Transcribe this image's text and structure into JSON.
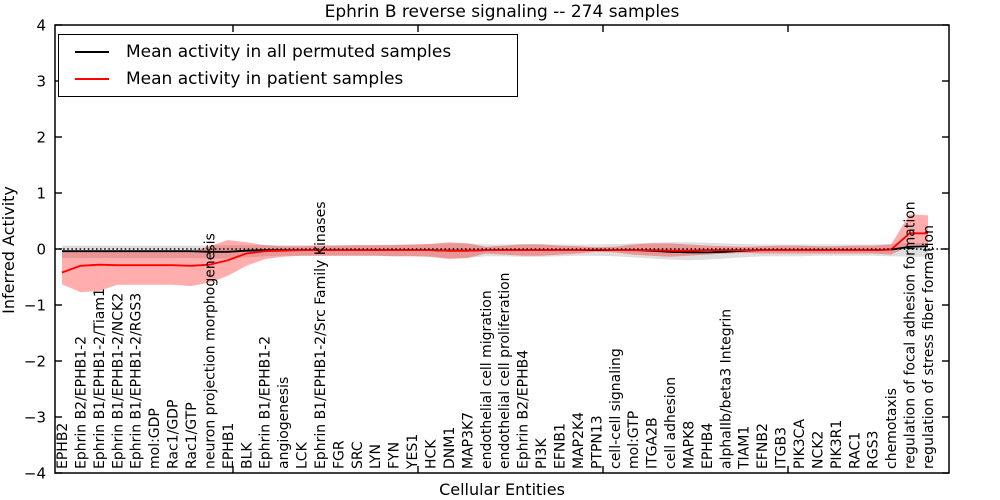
{
  "chart_data": {
    "type": "line",
    "title": "Ephrin B reverse signaling -- 274 samples",
    "xlabel": "Cellular Entities",
    "ylabel": "Inferred Activity",
    "ylim": [
      -4,
      4
    ],
    "grid": false,
    "legend_position": "upper-left",
    "zero_line": {
      "y": 0,
      "style": "dotted",
      "color": "#000000"
    },
    "ytick_values": [
      4,
      3,
      2,
      1,
      0,
      -1,
      -2,
      -3,
      -4
    ],
    "ytick_labels": [
      "4",
      "3",
      "2",
      "1",
      "0",
      "−1",
      "−2",
      "−3",
      "−4"
    ],
    "categories": [
      "EPHB2",
      "Ephrin B2/EPHB1-2",
      "Ephrin B1/EPHB1-2/Tiam1",
      "Ephrin B1/EPHB1-2/NCK2",
      "Ephrin B1/EPHB1-2/RGS3",
      "mol:GDP",
      "Rac1/GDP",
      "Rac1/GTP",
      "neuron projection morphogenesis",
      "EPHB1",
      "BLK",
      "Ephrin B1/EPHB1-2",
      "angiogenesis",
      "LCK",
      "Ephrin B1/EPHB1-2/Src Family Kinases",
      "FGR",
      "SRC",
      "LYN",
      "FYN",
      "YES1",
      "HCK",
      "DNM1",
      "MAP3K7",
      "endothelial cell migration",
      "endothelial cell proliferation",
      "Ephrin B2/EPHB4",
      "PI3K",
      "EFNB1",
      "MAP2K4",
      "PTPN13",
      "cell-cell signaling",
      "mol:GTP",
      "ITGA2B",
      "cell adhesion",
      "MAPK8",
      "EPHB4",
      "alphaIIb/beta3 Integrin",
      "TIAM1",
      "EFNB2",
      "ITGB3",
      "PIK3CA",
      "NCK2",
      "PIK3R1",
      "RAC1",
      "RGS3",
      "chemotaxis",
      "regulation of focal adhesion formation",
      "regulation of stress fiber formation"
    ],
    "series": [
      {
        "name": "Mean activity in all permuted samples",
        "color": "#000000",
        "band_color": "rgba(0,0,0,0.13)",
        "values": [
          -0.04,
          -0.04,
          -0.04,
          -0.04,
          -0.04,
          -0.04,
          -0.04,
          -0.04,
          -0.05,
          -0.05,
          -0.03,
          -0.02,
          -0.02,
          -0.02,
          -0.02,
          -0.02,
          -0.02,
          -0.02,
          -0.02,
          -0.02,
          -0.02,
          -0.03,
          -0.03,
          -0.02,
          -0.02,
          -0.02,
          -0.02,
          -0.02,
          -0.02,
          -0.02,
          -0.02,
          -0.02,
          -0.03,
          -0.05,
          -0.06,
          -0.06,
          -0.05,
          -0.03,
          -0.02,
          -0.02,
          -0.02,
          -0.02,
          -0.02,
          -0.02,
          -0.02,
          -0.01,
          0.04,
          0.05
        ],
        "band_upper": [
          0.06,
          0.06,
          0.06,
          0.06,
          0.06,
          0.06,
          0.06,
          0.06,
          0.06,
          0.07,
          0.07,
          0.07,
          0.07,
          0.07,
          0.07,
          0.07,
          0.07,
          0.07,
          0.08,
          0.08,
          0.09,
          0.1,
          0.1,
          0.08,
          0.08,
          0.09,
          0.09,
          0.08,
          0.08,
          0.08,
          0.09,
          0.1,
          0.11,
          0.12,
          0.12,
          0.11,
          0.1,
          0.09,
          0.08,
          0.08,
          0.08,
          0.08,
          0.08,
          0.08,
          0.08,
          0.09,
          0.11,
          0.11
        ],
        "band_lower": [
          -0.16,
          -0.16,
          -0.16,
          -0.16,
          -0.16,
          -0.16,
          -0.16,
          -0.16,
          -0.17,
          -0.17,
          -0.15,
          -0.13,
          -0.12,
          -0.12,
          -0.12,
          -0.12,
          -0.12,
          -0.12,
          -0.13,
          -0.13,
          -0.14,
          -0.16,
          -0.16,
          -0.13,
          -0.13,
          -0.14,
          -0.14,
          -0.13,
          -0.12,
          -0.12,
          -0.13,
          -0.15,
          -0.17,
          -0.19,
          -0.2,
          -0.19,
          -0.17,
          -0.15,
          -0.13,
          -0.13,
          -0.13,
          -0.12,
          -0.12,
          -0.12,
          -0.12,
          -0.13,
          -0.14,
          -0.14
        ]
      },
      {
        "name": "Mean activity in patient samples",
        "color": "#ff0000",
        "band_color": "rgba(255,0,0,0.32)",
        "values": [
          -0.42,
          -0.3,
          -0.28,
          -0.29,
          -0.29,
          -0.29,
          -0.29,
          -0.3,
          -0.28,
          -0.2,
          -0.08,
          -0.04,
          -0.03,
          -0.02,
          -0.02,
          -0.02,
          -0.02,
          -0.02,
          -0.02,
          -0.02,
          -0.02,
          -0.03,
          -0.03,
          -0.02,
          -0.02,
          -0.02,
          -0.02,
          -0.02,
          -0.02,
          -0.01,
          -0.02,
          -0.02,
          -0.02,
          -0.03,
          -0.03,
          -0.02,
          -0.02,
          -0.02,
          -0.02,
          -0.02,
          -0.02,
          -0.02,
          -0.02,
          -0.02,
          -0.02,
          -0.01,
          0.28,
          0.28
        ],
        "band_upper": [
          -0.04,
          -0.04,
          -0.04,
          -0.04,
          -0.04,
          -0.04,
          -0.04,
          -0.05,
          0.05,
          0.16,
          0.12,
          0.07,
          0.05,
          0.05,
          0.06,
          0.06,
          0.07,
          0.07,
          0.07,
          0.08,
          0.09,
          0.12,
          0.1,
          0.04,
          0.06,
          0.08,
          0.08,
          0.06,
          0.05,
          0.03,
          0.04,
          0.08,
          0.1,
          0.1,
          0.08,
          0.06,
          0.05,
          0.04,
          0.05,
          0.06,
          0.06,
          0.05,
          0.05,
          0.06,
          0.06,
          0.08,
          0.62,
          0.6
        ],
        "band_lower": [
          -0.63,
          -0.77,
          -0.75,
          -0.64,
          -0.64,
          -0.64,
          -0.64,
          -0.66,
          -0.6,
          -0.48,
          -0.3,
          -0.18,
          -0.14,
          -0.12,
          -0.12,
          -0.12,
          -0.12,
          -0.12,
          -0.13,
          -0.13,
          -0.14,
          -0.18,
          -0.16,
          -0.08,
          -0.1,
          -0.12,
          -0.12,
          -0.1,
          -0.08,
          -0.05,
          -0.06,
          -0.1,
          -0.12,
          -0.14,
          -0.12,
          -0.1,
          -0.08,
          -0.07,
          -0.08,
          -0.08,
          -0.08,
          -0.08,
          -0.08,
          -0.08,
          -0.08,
          -0.1,
          0.06,
          0.08
        ]
      }
    ]
  }
}
